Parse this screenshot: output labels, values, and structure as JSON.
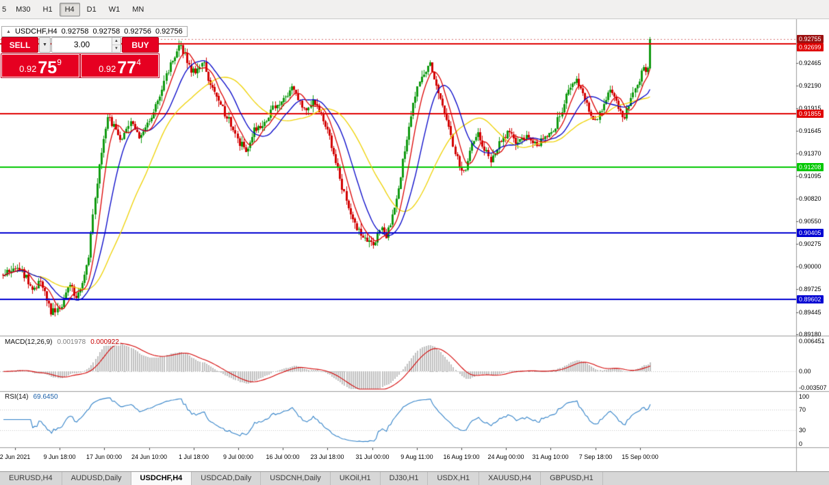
{
  "toolbar": {
    "timeframes": [
      "5",
      "M30",
      "H1",
      "H4",
      "D1",
      "W1",
      "MN"
    ],
    "active": "H4"
  },
  "chart_header": {
    "collapse_icon": "▲",
    "symbol": "USDCHF,H4",
    "open": "0.92758",
    "high": "0.92758",
    "low": "0.92756",
    "close": "0.92756"
  },
  "trade_panel": {
    "sell_label": "SELL",
    "buy_label": "BUY",
    "volume": "3.00",
    "dropdown_icon": "▼",
    "spinner_up_icon": "▲",
    "spinner_down_icon": "▼",
    "sell_price": {
      "prefix": "0.92",
      "main": "75",
      "sup": "9"
    },
    "buy_price": {
      "prefix": "0.92",
      "main": "77",
      "sup": "4"
    }
  },
  "chart_data": {
    "type": "candlestick",
    "symbol": "USDCHF",
    "timeframe": "H4",
    "current_price": 0.92755,
    "current_price_tag": {
      "value": "0.92755",
      "color": "#9c1010"
    },
    "price_axis_ticks": [
      "0.92465",
      "0.92190",
      "0.91915",
      "0.91645",
      "0.91370",
      "0.91095",
      "0.90820",
      "0.90550",
      "0.90275",
      "0.90000",
      "0.89725",
      "0.89445",
      "0.89180"
    ],
    "hlines": [
      {
        "value": 0.92699,
        "label": "0.92699",
        "color": "#e00000"
      },
      {
        "value": 0.91855,
        "label": "0.91855",
        "color": "#e00000"
      },
      {
        "value": 0.91208,
        "label": "0.91208",
        "color": "#00c800"
      },
      {
        "value": 0.90405,
        "label": "0.90405",
        "color": "#0000d2"
      },
      {
        "value": 0.89602,
        "label": "0.89602",
        "color": "#0000d2"
      }
    ],
    "candle_colors": {
      "up": "#119a11",
      "down": "#d20000"
    },
    "moving_averages": [
      {
        "name": "fast",
        "color": "#dd0000",
        "period": 7
      },
      {
        "name": "medium",
        "color": "#0000c8",
        "period": 16
      },
      {
        "name": "slow",
        "color": "#efd200",
        "period": 35
      }
    ],
    "price_path": [
      [
        0.0,
        0.899
      ],
      [
        0.027,
        0.8998
      ],
      [
        0.046,
        0.8972
      ],
      [
        0.058,
        0.8982
      ],
      [
        0.075,
        0.8944
      ],
      [
        0.089,
        0.8952
      ],
      [
        0.101,
        0.8978
      ],
      [
        0.114,
        0.8964
      ],
      [
        0.125,
        0.8988
      ],
      [
        0.133,
        0.9015
      ],
      [
        0.141,
        0.9078
      ],
      [
        0.152,
        0.9138
      ],
      [
        0.162,
        0.9182
      ],
      [
        0.173,
        0.9168
      ],
      [
        0.184,
        0.9152
      ],
      [
        0.196,
        0.9174
      ],
      [
        0.212,
        0.9158
      ],
      [
        0.233,
        0.9188
      ],
      [
        0.249,
        0.9224
      ],
      [
        0.262,
        0.925
      ],
      [
        0.272,
        0.9268
      ],
      [
        0.281,
        0.9256
      ],
      [
        0.29,
        0.9238
      ],
      [
        0.301,
        0.9236
      ],
      [
        0.31,
        0.9246
      ],
      [
        0.322,
        0.9215
      ],
      [
        0.349,
        0.9178
      ],
      [
        0.365,
        0.915
      ],
      [
        0.376,
        0.9142
      ],
      [
        0.388,
        0.9165
      ],
      [
        0.402,
        0.9172
      ],
      [
        0.418,
        0.9192
      ],
      [
        0.434,
        0.9206
      ],
      [
        0.447,
        0.9216
      ],
      [
        0.465,
        0.919
      ],
      [
        0.479,
        0.92
      ],
      [
        0.492,
        0.9184
      ],
      [
        0.504,
        0.9158
      ],
      [
        0.515,
        0.9126
      ],
      [
        0.525,
        0.9094
      ],
      [
        0.536,
        0.9066
      ],
      [
        0.546,
        0.9046
      ],
      [
        0.56,
        0.9034
      ],
      [
        0.574,
        0.9028
      ],
      [
        0.584,
        0.9048
      ],
      [
        0.593,
        0.9038
      ],
      [
        0.604,
        0.9066
      ],
      [
        0.614,
        0.9106
      ],
      [
        0.625,
        0.916
      ],
      [
        0.637,
        0.9206
      ],
      [
        0.65,
        0.9236
      ],
      [
        0.66,
        0.9246
      ],
      [
        0.671,
        0.9216
      ],
      [
        0.684,
        0.9186
      ],
      [
        0.694,
        0.915
      ],
      [
        0.705,
        0.9122
      ],
      [
        0.713,
        0.9114
      ],
      [
        0.724,
        0.9148
      ],
      [
        0.734,
        0.9163
      ],
      [
        0.745,
        0.914
      ],
      [
        0.755,
        0.9128
      ],
      [
        0.768,
        0.9152
      ],
      [
        0.782,
        0.9163
      ],
      [
        0.795,
        0.9148
      ],
      [
        0.81,
        0.9158
      ],
      [
        0.824,
        0.9148
      ],
      [
        0.838,
        0.9153
      ],
      [
        0.85,
        0.9163
      ],
      [
        0.863,
        0.9186
      ],
      [
        0.874,
        0.9215
      ],
      [
        0.887,
        0.9228
      ],
      [
        0.898,
        0.9205
      ],
      [
        0.908,
        0.9185
      ],
      [
        0.919,
        0.9178
      ],
      [
        0.93,
        0.92
      ],
      [
        0.94,
        0.9212
      ],
      [
        0.95,
        0.9196
      ],
      [
        0.958,
        0.9178
      ],
      [
        0.968,
        0.9195
      ],
      [
        0.978,
        0.922
      ],
      [
        0.99,
        0.9238
      ],
      [
        1.0,
        0.9242
      ]
    ],
    "time_labels": [
      "2 Jun 2021",
      "9 Jun 18:00",
      "17 Jun 00:00",
      "24 Jun 10:00",
      "1 Jul 18:00",
      "9 Jul 00:00",
      "16 Jul 00:00",
      "23 Jul 18:00",
      "31 Jul 00:00",
      "9 Aug 11:00",
      "16 Aug 19:00",
      "24 Aug 00:00",
      "31 Aug 10:00",
      "7 Sep 18:00",
      "15 Sep 00:00"
    ],
    "macd": {
      "title": "MACD(12,26,9)",
      "value_main": "0.001978",
      "value_signal": "0.000922",
      "axis_labels": [
        "0.006451",
        "0.00",
        "-0.003507"
      ],
      "histogram_color": "#c0c0c0",
      "signal_color": "#d40000"
    },
    "rsi": {
      "title": "RSI(14)",
      "value": "69.6450",
      "axis_labels": [
        "100",
        "70",
        "30",
        "0"
      ],
      "levels": [
        70,
        30
      ],
      "line_color": "#2f80c8"
    }
  },
  "tabs": [
    {
      "label": "EURUSD,H4",
      "active": false
    },
    {
      "label": "AUDUSD,Daily",
      "active": false
    },
    {
      "label": "USDCHF,H4",
      "active": true
    },
    {
      "label": "USDCAD,Daily",
      "active": false
    },
    {
      "label": "USDCNH,Daily",
      "active": false
    },
    {
      "label": "UKOil,H1",
      "active": false
    },
    {
      "label": "DJ30,H1",
      "active": false
    },
    {
      "label": "USDX,H1",
      "active": false
    },
    {
      "label": "XAUUSD,H4",
      "active": false
    },
    {
      "label": "GBPUSD,H1",
      "active": false
    }
  ]
}
